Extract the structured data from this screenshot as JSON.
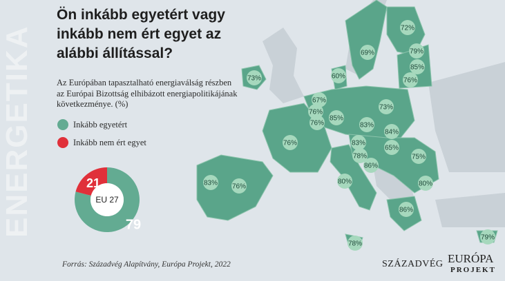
{
  "side_label": "ENERGETIKA",
  "title": "Ön inkább egyetért vagy inkább nem ért egyet az alábbi állítással?",
  "subtitle": "Az Európában tapasztalható energiaválság részben az Európai Bizottság elhibázott energiapolitikájának következménye. (%)",
  "chart_data": {
    "type": "pie",
    "donut": true,
    "categories": [
      "Inkább egyetért",
      "Inkább nem ért egyet"
    ],
    "values": [
      79,
      21
    ],
    "colors": [
      "#63ab92",
      "#e0303a"
    ],
    "center_label": "EU 27"
  },
  "map": {
    "labels": [
      "72%",
      "69%",
      "79%",
      "85%",
      "76%",
      "73%",
      "60%",
      "67%",
      "76%",
      "76%",
      "85%",
      "73%",
      "83%",
      "84%",
      "76%",
      "83%",
      "65%",
      "78%",
      "86%",
      "75%",
      "80%",
      "80%",
      "83%",
      "76%",
      "86%",
      "78%",
      "79%"
    ]
  },
  "source": "Forrás: Századvég Alapítvány, Európa Projekt, 2022",
  "logos": [
    "SZÁZADVÉG",
    "EURÓPA",
    "PROJEKT"
  ]
}
